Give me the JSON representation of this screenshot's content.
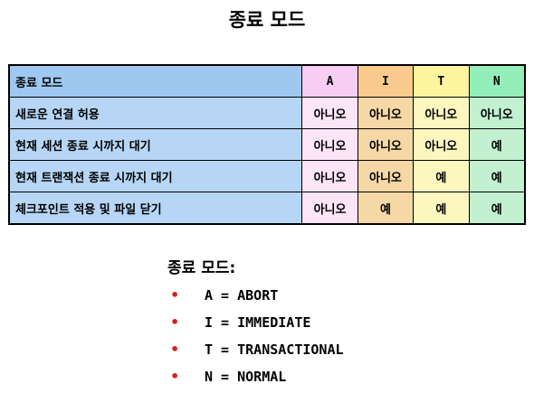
{
  "title": "종료 모드",
  "table": {
    "header": {
      "label": "종료 모드",
      "columns": [
        "A",
        "I",
        "T",
        "N"
      ]
    },
    "rows": [
      {
        "label": "새로운 연결 허용",
        "values": [
          "아니오",
          "아니오",
          "아니오",
          "아니오"
        ]
      },
      {
        "label": "현재 세션 종료 시까지 대기",
        "values": [
          "아니오",
          "아니오",
          "아니오",
          "예"
        ]
      },
      {
        "label": "현재 트랜잭션 종료 시까지 대기",
        "values": [
          "아니오",
          "아니오",
          "예",
          "예"
        ]
      },
      {
        "label": "체크포인트 적용 및 파일 닫기",
        "values": [
          "아니오",
          "예",
          "예",
          "예"
        ]
      }
    ]
  },
  "legend": {
    "title": "종료 모드:",
    "bullet": "•",
    "items": [
      "A = ABORT",
      "I = IMMEDIATE",
      "T = TRANSACTIONAL",
      "N = NORMAL"
    ]
  },
  "colors": {
    "header_label": "#9fc8f0",
    "row_label": "#b7d6f5",
    "col_A": "#f7cdf3",
    "col_I": "#f9cc8d",
    "col_T": "#fdf59d",
    "col_N": "#93eeba",
    "bullet": "#d42020"
  }
}
